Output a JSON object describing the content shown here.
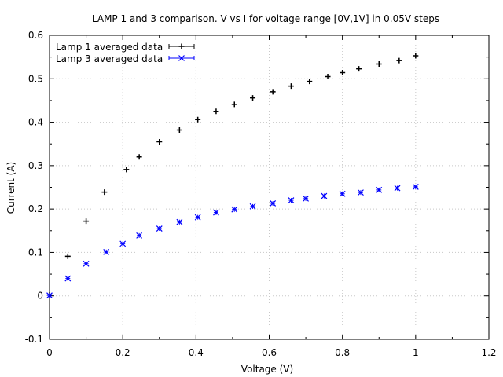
{
  "chart_data": {
    "type": "scatter",
    "title": "LAMP 1 and 3 comparison. V vs I for voltage range [0V,1V] in 0.05V steps",
    "xlabel": "Voltage (V)",
    "ylabel": "Current (A)",
    "xlim": [
      0,
      1.2
    ],
    "ylim": [
      -0.1,
      0.6
    ],
    "xticks": [
      "0",
      "0.2",
      "0.4",
      "0.6",
      "0.8",
      "1",
      "1.2"
    ],
    "yticks": [
      "-0.1",
      "0",
      "0.1",
      "0.2",
      "0.3",
      "0.4",
      "0.5",
      "0.6"
    ],
    "grid": true,
    "legend_position": "top-left",
    "series": [
      {
        "name": "Lamp 1 averaged data",
        "color": "#000000",
        "marker": "plus",
        "x": [
          0,
          0.05,
          0.1,
          0.15,
          0.21,
          0.245,
          0.3,
          0.355,
          0.405,
          0.455,
          0.505,
          0.555,
          0.61,
          0.66,
          0.71,
          0.76,
          0.8,
          0.845,
          0.9,
          0.955,
          1.0
        ],
        "y": [
          0.002,
          0.091,
          0.172,
          0.239,
          0.291,
          0.32,
          0.355,
          0.382,
          0.406,
          0.425,
          0.441,
          0.456,
          0.47,
          0.483,
          0.494,
          0.505,
          0.514,
          0.523,
          0.534,
          0.542,
          0.553
        ]
      },
      {
        "name": "Lamp 3 averaged data",
        "color": "#0000ff",
        "marker": "x",
        "x": [
          0,
          0.05,
          0.1,
          0.155,
          0.2,
          0.245,
          0.3,
          0.355,
          0.405,
          0.455,
          0.505,
          0.555,
          0.61,
          0.66,
          0.7,
          0.75,
          0.8,
          0.85,
          0.9,
          0.95,
          1.0
        ],
        "y": [
          0.001,
          0.04,
          0.074,
          0.101,
          0.12,
          0.139,
          0.155,
          0.17,
          0.181,
          0.192,
          0.199,
          0.206,
          0.213,
          0.22,
          0.224,
          0.23,
          0.235,
          0.238,
          0.244,
          0.248,
          0.251
        ]
      }
    ]
  }
}
